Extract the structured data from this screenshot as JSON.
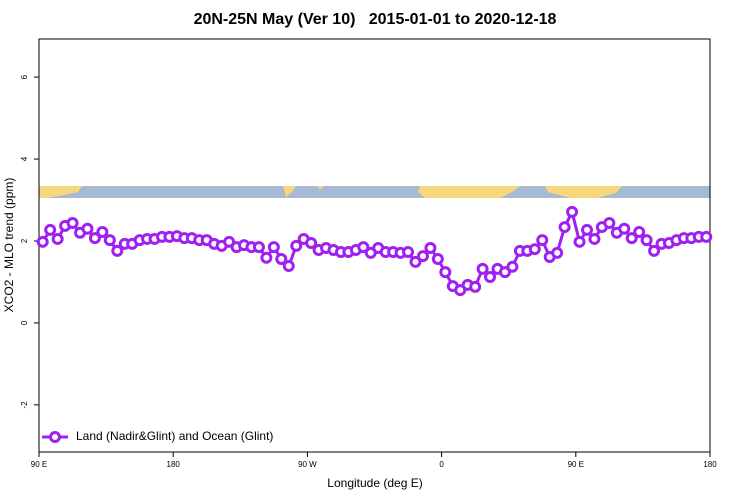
{
  "chart_data": {
    "type": "line",
    "title": "20N-25N May (Ver 10)   2015-01-01 to 2020-12-18",
    "xlabel": "Longitude (deg E)",
    "ylabel": "XCO2 - MLO trend (ppm)",
    "xlim": [
      90,
      540
    ],
    "xticks": [
      {
        "value": 90,
        "label": "90 E"
      },
      {
        "value": 180,
        "label": "180"
      },
      {
        "value": 270,
        "label": "90 W"
      },
      {
        "value": 360,
        "label": "0"
      },
      {
        "value": 450,
        "label": "90 E"
      },
      {
        "value": 540,
        "label": "180"
      }
    ],
    "ylim": [
      -3.15,
      6.93
    ],
    "yticks": [
      -2,
      0,
      2,
      4,
      6
    ],
    "x": [
      92.5,
      97.5,
      102.5,
      107.5,
      112.5,
      117.5,
      122.5,
      127.5,
      132.5,
      137.5,
      142.5,
      147.5,
      152.5,
      157.5,
      162.5,
      167.5,
      172.5,
      177.5,
      182.5,
      187.5,
      192.5,
      197.5,
      202.5,
      207.5,
      212.5,
      217.5,
      222.5,
      227.5,
      232.5,
      237.5,
      242.5,
      247.5,
      252.5,
      257.5,
      262.5,
      267.5,
      272.5,
      277.5,
      282.5,
      287.5,
      292.5,
      297.5,
      302.5,
      307.5,
      312.5,
      317.5,
      322.5,
      327.5,
      332.5,
      337.5,
      342.5,
      347.5,
      352.5,
      357.5,
      362.5,
      367.5,
      372.5,
      377.5,
      382.5,
      387.5,
      392.5,
      397.5,
      402.5,
      407.5,
      412.5,
      417.5,
      422.5,
      427.5,
      432.5,
      437.5,
      442.5,
      447.5,
      452.5,
      457.5,
      462.5,
      467.5,
      472.5,
      477.5,
      482.5,
      487.5,
      492.5,
      497.5,
      502.5,
      507.5,
      512.5,
      517.5,
      522.5,
      527.5,
      532.5,
      537.5
    ],
    "series": [
      {
        "name": "Land (Nadir&Glint) and Ocean (Glint)",
        "color": "#a020f0",
        "values": [
          1.98,
          2.27,
          2.05,
          2.37,
          2.44,
          2.2,
          2.3,
          2.07,
          2.22,
          2.02,
          1.76,
          1.93,
          1.93,
          2.02,
          2.05,
          2.05,
          2.1,
          2.1,
          2.12,
          2.07,
          2.07,
          2.02,
          2.02,
          1.93,
          1.88,
          1.98,
          1.85,
          1.9,
          1.85,
          1.85,
          1.59,
          1.85,
          1.56,
          1.39,
          1.88,
          2.05,
          1.95,
          1.78,
          1.83,
          1.78,
          1.73,
          1.73,
          1.78,
          1.85,
          1.71,
          1.83,
          1.73,
          1.73,
          1.71,
          1.73,
          1.49,
          1.63,
          1.83,
          1.56,
          1.24,
          0.9,
          0.8,
          0.93,
          0.88,
          1.32,
          1.12,
          1.32,
          1.24,
          1.37,
          1.76,
          1.76,
          1.8,
          2.02,
          1.61,
          1.71,
          2.34,
          2.71,
          1.98,
          2.27,
          2.05,
          2.34,
          2.44,
          2.2,
          2.3,
          2.07,
          2.22,
          2.02,
          1.76,
          1.93,
          1.95,
          2.02,
          2.07,
          2.07,
          2.1,
          2.1
        ]
      }
    ]
  }
}
